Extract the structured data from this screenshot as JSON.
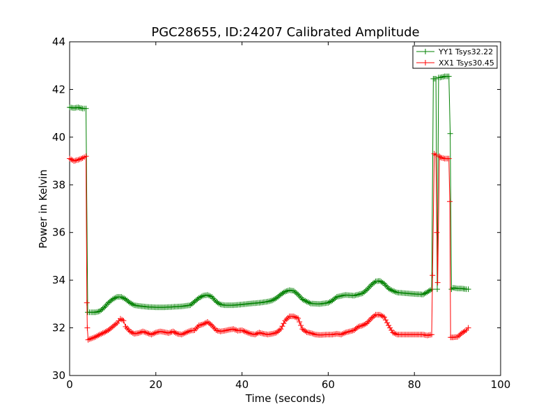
{
  "chart_data": {
    "type": "line",
    "title": "PGC28655, ID:24207 Calibrated Amplitude",
    "xlabel": "Time (seconds)",
    "ylabel": "Power in Kelvin",
    "xlim": [
      0,
      100
    ],
    "ylim": [
      30,
      44
    ],
    "xticks": [
      "0",
      "20",
      "40",
      "60",
      "80",
      "100"
    ],
    "yticks": [
      "30",
      "32",
      "34",
      "36",
      "38",
      "40",
      "42",
      "44"
    ],
    "grid": false,
    "legend_position": "top-right",
    "marker": "plus",
    "series": [
      {
        "name": "YY1 Tsys32.22",
        "color": "#008000",
        "points": [
          [
            0,
            41.25
          ],
          [
            1,
            41.22
          ],
          [
            2,
            41.25
          ],
          [
            3,
            41.2
          ],
          [
            3.8,
            41.2
          ],
          [
            4.2,
            32.65
          ],
          [
            5,
            32.65
          ],
          [
            6,
            32.65
          ],
          [
            7,
            32.7
          ],
          [
            8,
            32.85
          ],
          [
            9,
            33.05
          ],
          [
            10,
            33.2
          ],
          [
            11,
            33.3
          ],
          [
            12,
            33.3
          ],
          [
            13,
            33.2
          ],
          [
            14,
            33.05
          ],
          [
            15,
            32.95
          ],
          [
            16,
            32.92
          ],
          [
            18,
            32.88
          ],
          [
            20,
            32.86
          ],
          [
            22,
            32.86
          ],
          [
            24,
            32.88
          ],
          [
            26,
            32.9
          ],
          [
            28,
            32.95
          ],
          [
            29,
            33.1
          ],
          [
            30,
            33.25
          ],
          [
            31,
            33.35
          ],
          [
            32,
            33.38
          ],
          [
            33,
            33.3
          ],
          [
            34,
            33.1
          ],
          [
            35,
            32.98
          ],
          [
            36,
            32.95
          ],
          [
            38,
            32.95
          ],
          [
            40,
            32.98
          ],
          [
            42,
            33.02
          ],
          [
            44,
            33.05
          ],
          [
            46,
            33.1
          ],
          [
            47,
            33.15
          ],
          [
            48,
            33.25
          ],
          [
            49,
            33.4
          ],
          [
            50,
            33.52
          ],
          [
            51,
            33.58
          ],
          [
            52,
            33.55
          ],
          [
            53,
            33.4
          ],
          [
            54,
            33.2
          ],
          [
            55,
            33.1
          ],
          [
            56,
            33.02
          ],
          [
            58,
            33.0
          ],
          [
            60,
            33.05
          ],
          [
            61,
            33.15
          ],
          [
            62,
            33.3
          ],
          [
            64,
            33.38
          ],
          [
            66,
            33.35
          ],
          [
            68,
            33.45
          ],
          [
            69,
            33.6
          ],
          [
            70,
            33.8
          ],
          [
            71,
            33.95
          ],
          [
            72,
            33.97
          ],
          [
            73,
            33.85
          ],
          [
            74,
            33.65
          ],
          [
            75,
            33.55
          ],
          [
            76,
            33.48
          ],
          [
            78,
            33.45
          ],
          [
            80,
            33.42
          ],
          [
            82,
            33.4
          ],
          [
            83,
            33.5
          ],
          [
            84.0,
            33.62
          ],
          [
            84.4,
            42.45
          ],
          [
            85,
            42.45
          ],
          [
            85.3,
            33.62
          ],
          [
            85.6,
            42.5
          ],
          [
            86,
            42.5
          ],
          [
            87,
            42.55
          ],
          [
            88,
            42.55
          ],
          [
            88.3,
            40.15
          ],
          [
            88.6,
            33.62
          ],
          [
            89,
            33.68
          ],
          [
            90,
            33.65
          ],
          [
            91,
            33.65
          ],
          [
            92,
            33.62
          ],
          [
            92.5,
            33.62
          ]
        ]
      },
      {
        "name": "XX1 Tsys30.45",
        "color": "#ff0000",
        "points": [
          [
            0,
            39.1
          ],
          [
            1,
            39.0
          ],
          [
            2,
            39.05
          ],
          [
            3,
            39.12
          ],
          [
            3.8,
            39.2
          ],
          [
            4.0,
            33.05
          ],
          [
            4.1,
            32.0
          ],
          [
            4.3,
            31.5
          ],
          [
            5,
            31.55
          ],
          [
            6,
            31.62
          ],
          [
            7,
            31.72
          ],
          [
            8,
            31.8
          ],
          [
            9,
            31.9
          ],
          [
            10,
            32.05
          ],
          [
            11,
            32.2
          ],
          [
            11.8,
            32.38
          ],
          [
            12.5,
            32.3
          ],
          [
            13,
            32.05
          ],
          [
            14,
            31.85
          ],
          [
            15,
            31.75
          ],
          [
            16,
            31.78
          ],
          [
            17,
            31.85
          ],
          [
            18,
            31.78
          ],
          [
            19,
            31.72
          ],
          [
            20,
            31.8
          ],
          [
            21,
            31.85
          ],
          [
            22,
            31.82
          ],
          [
            23,
            31.78
          ],
          [
            24,
            31.85
          ],
          [
            25,
            31.75
          ],
          [
            26,
            31.72
          ],
          [
            27,
            31.8
          ],
          [
            28,
            31.88
          ],
          [
            29,
            31.9
          ],
          [
            30,
            32.1
          ],
          [
            31,
            32.15
          ],
          [
            32,
            32.25
          ],
          [
            33,
            32.1
          ],
          [
            34,
            31.9
          ],
          [
            35,
            31.85
          ],
          [
            36,
            31.88
          ],
          [
            37,
            31.92
          ],
          [
            38,
            31.95
          ],
          [
            39,
            31.88
          ],
          [
            40,
            31.9
          ],
          [
            41,
            31.82
          ],
          [
            42,
            31.75
          ],
          [
            43,
            31.72
          ],
          [
            44,
            31.8
          ],
          [
            45,
            31.75
          ],
          [
            46,
            31.72
          ],
          [
            47,
            31.75
          ],
          [
            48,
            31.8
          ],
          [
            49,
            31.95
          ],
          [
            50,
            32.3
          ],
          [
            51,
            32.48
          ],
          [
            52,
            32.48
          ],
          [
            53,
            32.4
          ],
          [
            54,
            31.95
          ],
          [
            55,
            31.82
          ],
          [
            56,
            31.78
          ],
          [
            57,
            31.72
          ],
          [
            58,
            31.7
          ],
          [
            60,
            31.72
          ],
          [
            61,
            31.72
          ],
          [
            62,
            31.75
          ],
          [
            63,
            31.72
          ],
          [
            64,
            31.8
          ],
          [
            65,
            31.85
          ],
          [
            66,
            31.9
          ],
          [
            67,
            32.05
          ],
          [
            68,
            32.1
          ],
          [
            69,
            32.2
          ],
          [
            70,
            32.4
          ],
          [
            71,
            32.55
          ],
          [
            72,
            32.55
          ],
          [
            73,
            32.45
          ],
          [
            74,
            32.1
          ],
          [
            75,
            31.8
          ],
          [
            76,
            31.72
          ],
          [
            78,
            31.72
          ],
          [
            80,
            31.72
          ],
          [
            82,
            31.72
          ],
          [
            83,
            31.68
          ],
          [
            84,
            31.72
          ],
          [
            84.2,
            34.2
          ],
          [
            84.6,
            39.3
          ],
          [
            85,
            39.25
          ],
          [
            85.2,
            36.0
          ],
          [
            85.4,
            33.9
          ],
          [
            85.8,
            39.2
          ],
          [
            86,
            39.15
          ],
          [
            87,
            39.1
          ],
          [
            88,
            39.1
          ],
          [
            88.2,
            37.3
          ],
          [
            88.4,
            31.6
          ],
          [
            89,
            31.6
          ],
          [
            90,
            31.62
          ],
          [
            91,
            31.78
          ],
          [
            92,
            31.9
          ],
          [
            92.5,
            32.0
          ]
        ]
      }
    ]
  }
}
